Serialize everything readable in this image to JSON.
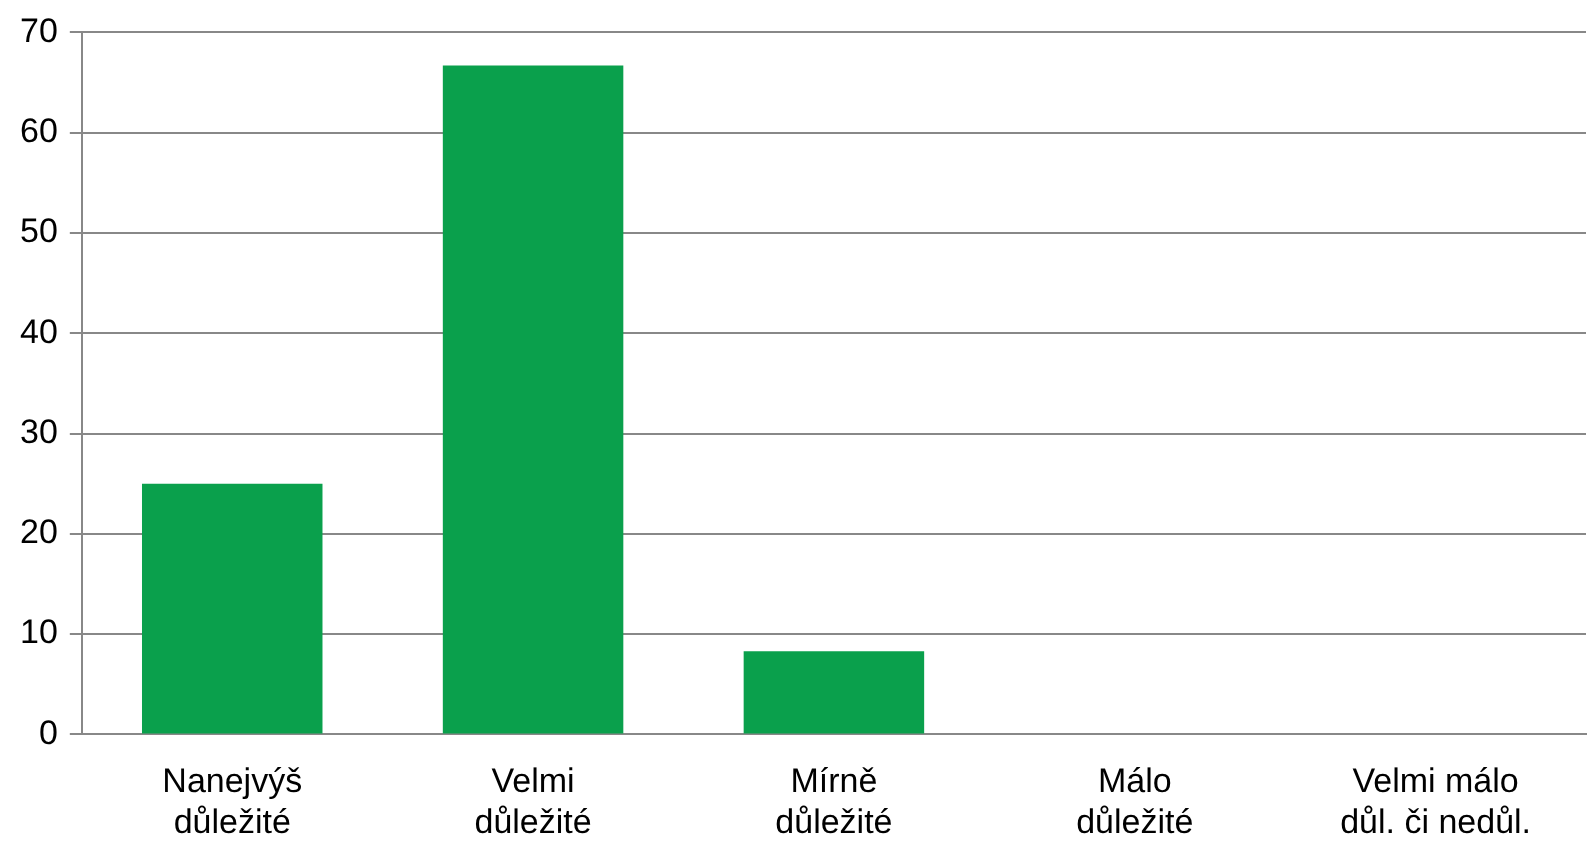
{
  "chart_data": {
    "type": "bar",
    "categories": [
      "Nanejvýš\ndůležité",
      "Velmi\ndůležité",
      "Mírně\ndůležité",
      "Málo\ndůležité",
      "Velmi málo\ndůl. či nedůl."
    ],
    "values": [
      25,
      66.7,
      8.3,
      0,
      0
    ],
    "color": "#0aa04c",
    "ylim": [
      0,
      70
    ],
    "yticks": [
      0,
      10,
      20,
      30,
      40,
      50,
      60,
      70
    ],
    "grid": "y",
    "legend": false
  }
}
